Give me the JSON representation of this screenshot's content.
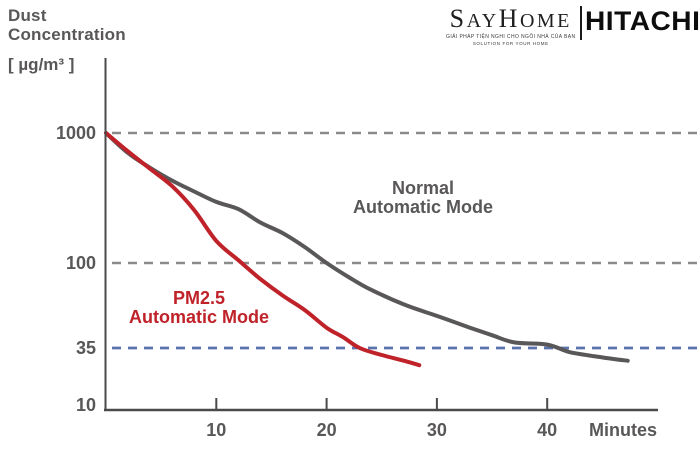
{
  "axis_title": {
    "line1": "Dust",
    "line2": "Concentration",
    "unit": "[ µg/m³ ]"
  },
  "logo": {
    "sayhome_s1": "S",
    "sayhome_s2": "AY",
    "sayhome_s3": "H",
    "sayhome_s4": "OME",
    "tagline_line1": "GIẢI PHÁP TIỆN NGHI CHO NGÔI NHÀ CỦA BẠN",
    "tagline_line2": "SOLUTION FOR YOUR HOME",
    "hitachi": "HITACHI"
  },
  "chart_data": {
    "type": "line",
    "title": "Dust Concentration vs Time",
    "xlabel": "Minutes",
    "ylabel": "Dust Concentration [µg/m³]",
    "y_scale": "log",
    "x_range": [
      0,
      48
    ],
    "y_ticks": [
      1000,
      100,
      35,
      10
    ],
    "x_ticks": [
      10,
      20,
      30,
      40
    ],
    "gridlines": [
      {
        "value": 1000,
        "style": "dashed",
        "color": "#8a8a8a"
      },
      {
        "value": 100,
        "style": "dashed",
        "color": "#8a8a8a"
      },
      {
        "value": 35,
        "style": "dashed",
        "color": "#5b74ae"
      }
    ],
    "series": [
      {
        "name": "Normal Automatic Mode",
        "label_line1": "Normal",
        "label_line2": "Automatic Mode",
        "color": "#595757",
        "points": [
          [
            0,
            1000
          ],
          [
            2,
            700
          ],
          [
            4,
            540
          ],
          [
            6,
            430
          ],
          [
            8,
            355
          ],
          [
            10,
            295
          ],
          [
            12,
            260
          ],
          [
            14,
            205
          ],
          [
            16,
            170
          ],
          [
            18,
            133
          ],
          [
            20,
            100
          ],
          [
            22,
            84
          ],
          [
            24,
            72
          ],
          [
            27,
            60
          ],
          [
            30,
            52
          ],
          [
            33,
            45
          ],
          [
            35,
            41
          ],
          [
            37,
            37.5
          ],
          [
            40,
            36.5
          ],
          [
            42,
            32
          ],
          [
            44,
            29.5
          ],
          [
            46,
            27.5
          ],
          [
            47.3,
            26.5
          ]
        ]
      },
      {
        "name": "PM2.5 Automatic Mode",
        "label_line1": "PM2.5",
        "label_line2": "Automatic Mode",
        "color": "#bf2229",
        "points": [
          [
            0,
            1000
          ],
          [
            2,
            720
          ],
          [
            4,
            530
          ],
          [
            6,
            390
          ],
          [
            8,
            255
          ],
          [
            10,
            148
          ],
          [
            12,
            105
          ],
          [
            14,
            82
          ],
          [
            16,
            67
          ],
          [
            18,
            56
          ],
          [
            20,
            45
          ],
          [
            21.5,
            40
          ],
          [
            23,
            35
          ],
          [
            25,
            30
          ],
          [
            27,
            26.5
          ],
          [
            28.4,
            24
          ]
        ]
      }
    ]
  },
  "x_axis_unit_label": "Minutes"
}
